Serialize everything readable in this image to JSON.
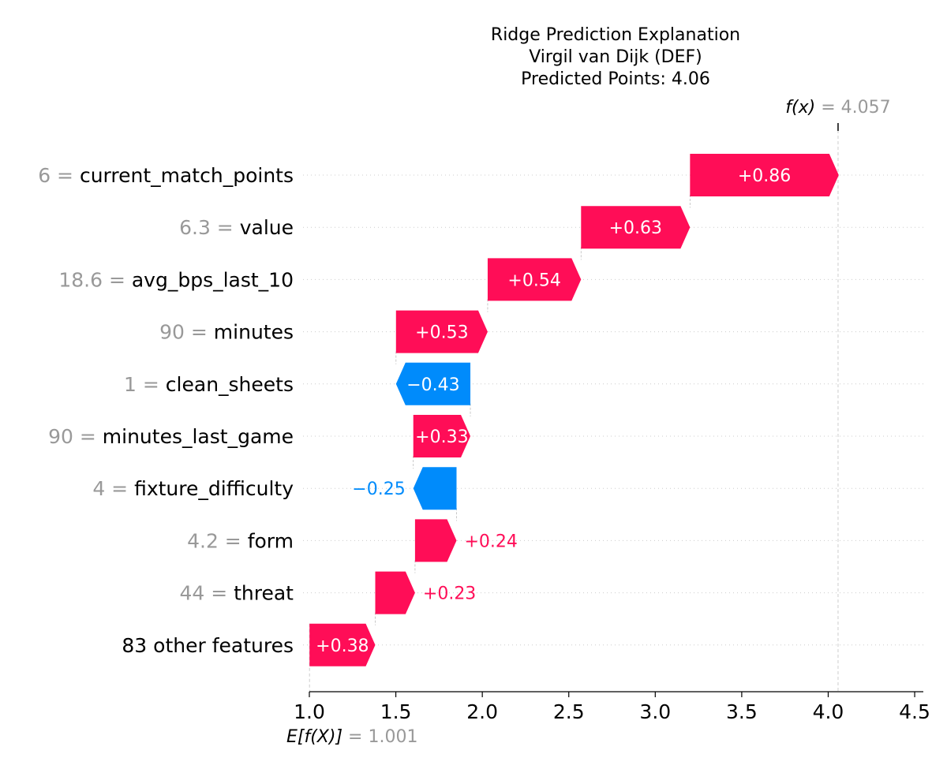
{
  "chart_data": {
    "type": "waterfall",
    "title_lines": [
      "Ridge Prediction Explanation",
      "Virgil van Dijk (DEF)",
      "Predicted Points: 4.06"
    ],
    "base_value": 1.001,
    "base_label": "E[f(X)]",
    "base_value_text": "= 1.001",
    "final_value": 4.057,
    "final_label": "f(x)",
    "final_value_text": "= 4.057",
    "xlim": [
      1.0,
      4.55
    ],
    "x_ticks": [
      1.0,
      1.5,
      2.0,
      2.5,
      3.0,
      3.5,
      4.0,
      4.5
    ],
    "x_tick_labels": [
      "1.0",
      "1.5",
      "2.0",
      "2.5",
      "3.0",
      "3.5",
      "4.0",
      "4.5"
    ],
    "colors": {
      "positive": "#ff0d57",
      "negative": "#008bfb",
      "value_grey": "#999999",
      "grid": "#cccccc"
    },
    "features": [
      {
        "value": "6",
        "name": "current_match_points",
        "contribution": 0.86,
        "label": "+0.86",
        "label_inside": true
      },
      {
        "value": "6.3",
        "name": "value",
        "contribution": 0.63,
        "label": "+0.63",
        "label_inside": true
      },
      {
        "value": "18.6",
        "name": "avg_bps_last_10",
        "contribution": 0.54,
        "label": "+0.54",
        "label_inside": true
      },
      {
        "value": "90",
        "name": "minutes",
        "contribution": 0.53,
        "label": "+0.53",
        "label_inside": true
      },
      {
        "value": "1",
        "name": "clean_sheets",
        "contribution": -0.43,
        "label": "−0.43",
        "label_inside": true
      },
      {
        "value": "90",
        "name": "minutes_last_game",
        "contribution": 0.33,
        "label": "+0.33",
        "label_inside": true
      },
      {
        "value": "4",
        "name": "fixture_difficulty",
        "contribution": -0.25,
        "label": "−0.25",
        "label_inside": false
      },
      {
        "value": "4.2",
        "name": "form",
        "contribution": 0.24,
        "label": "+0.24",
        "label_inside": false
      },
      {
        "value": "44",
        "name": "threat",
        "contribution": 0.23,
        "label": "+0.23",
        "label_inside": false
      },
      {
        "value": "",
        "name": "83 other features",
        "contribution": 0.38,
        "label": "+0.38",
        "label_inside": true
      }
    ]
  }
}
